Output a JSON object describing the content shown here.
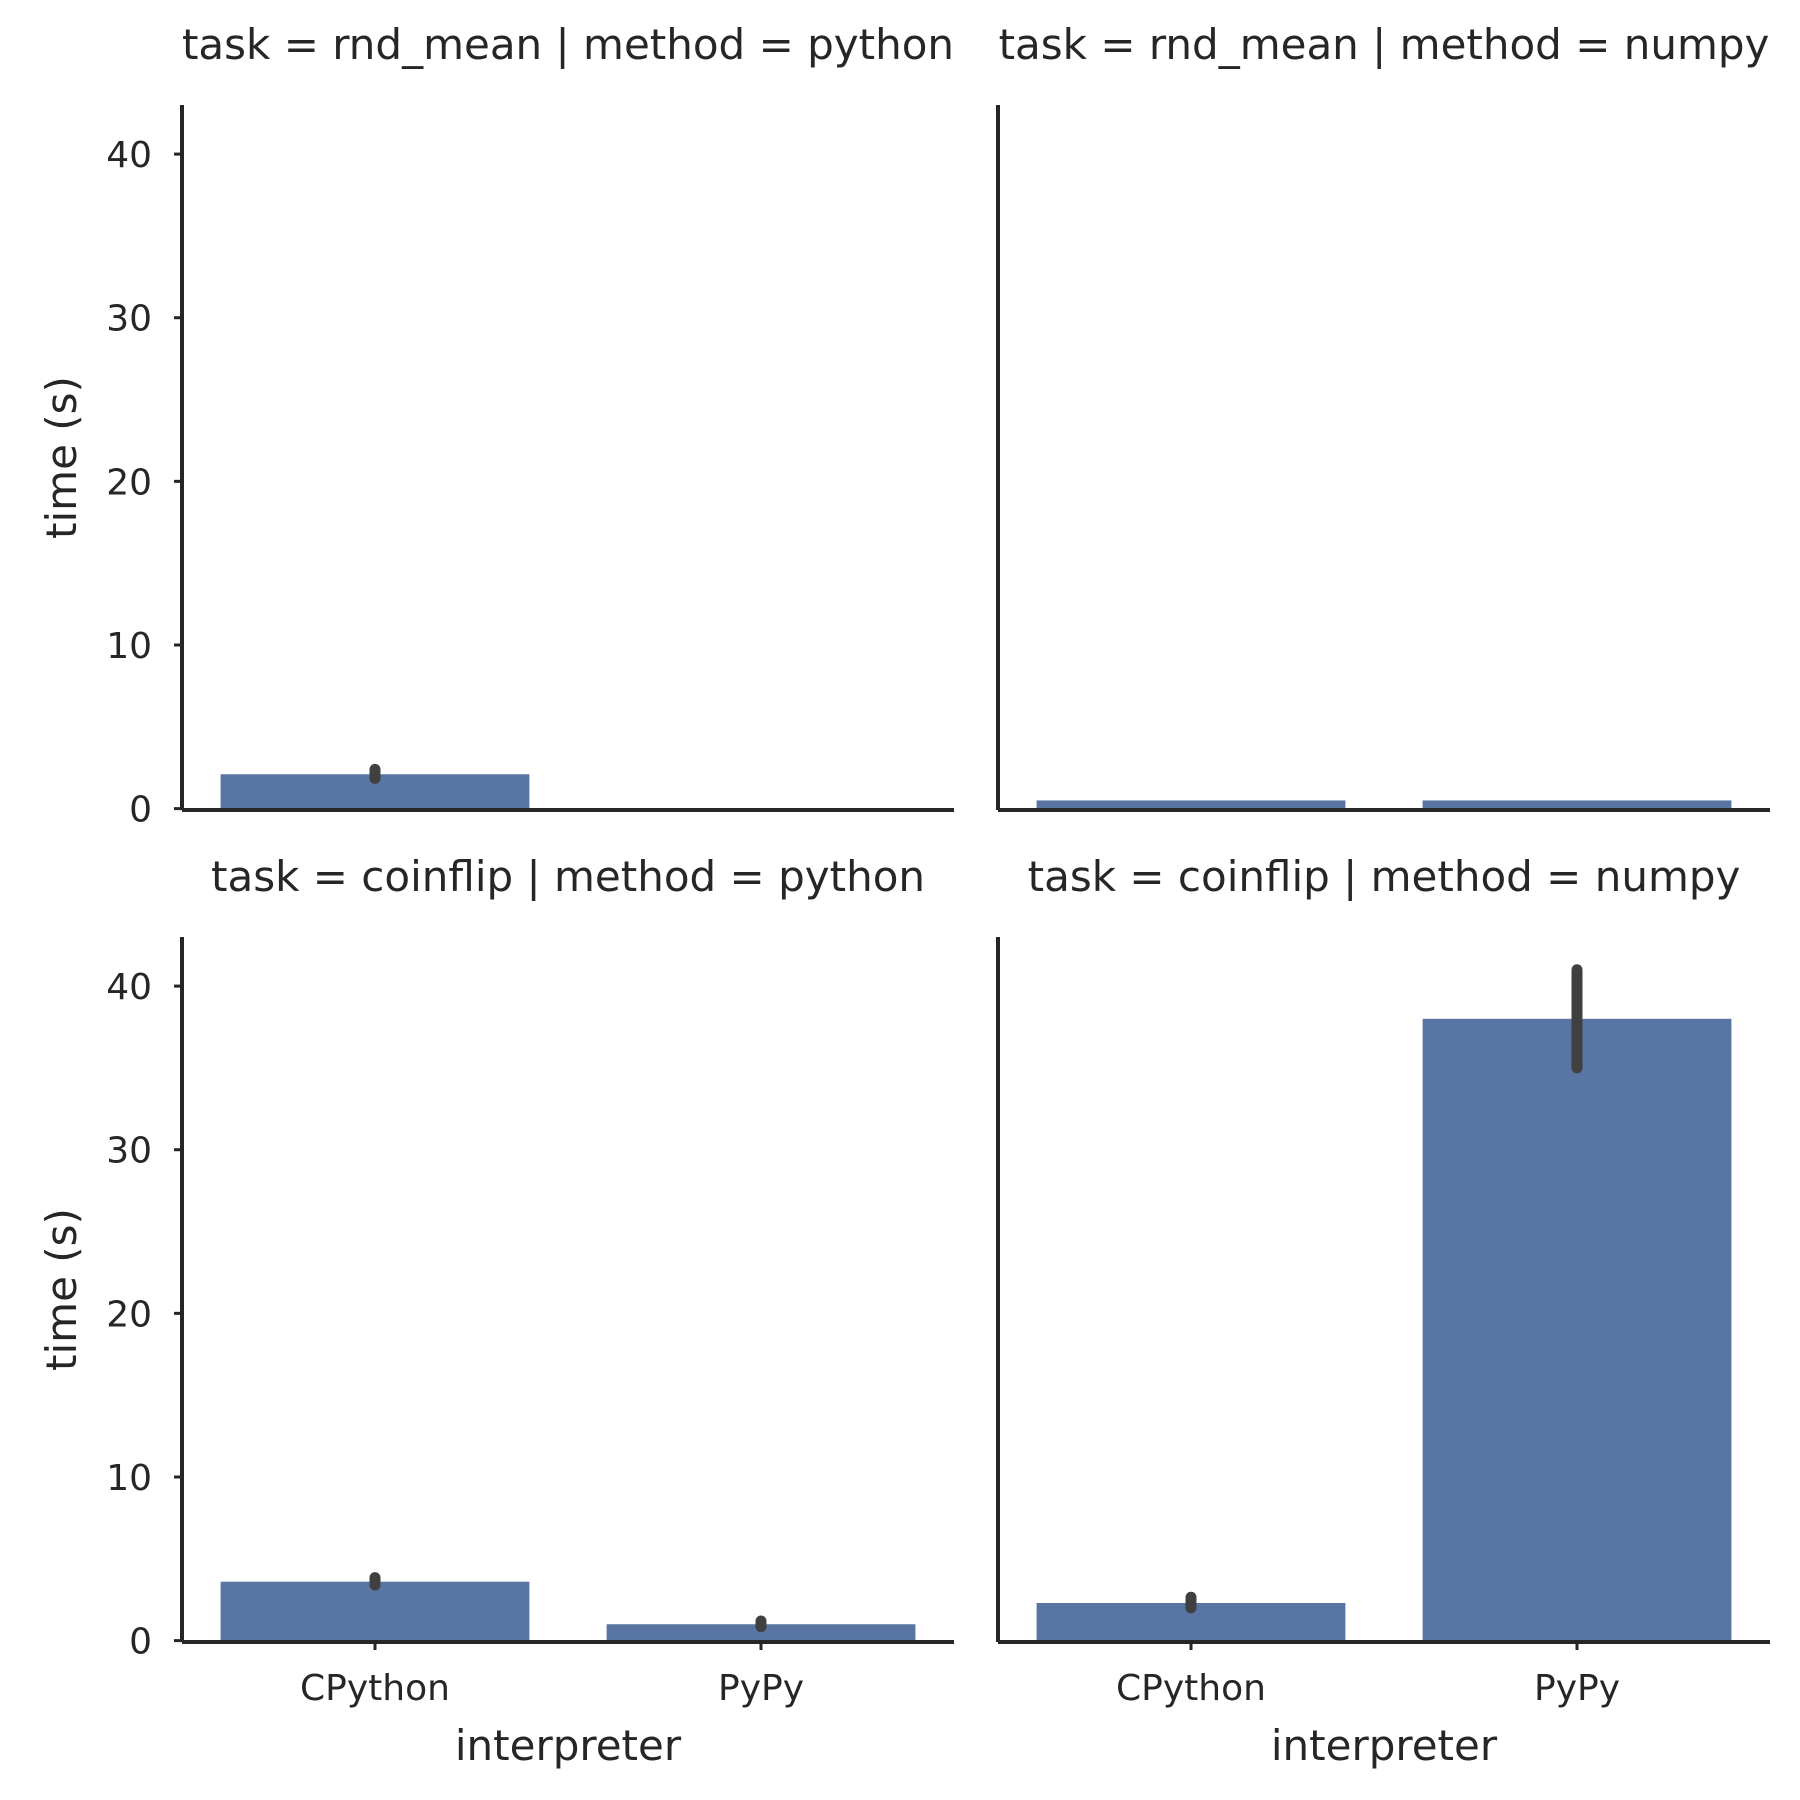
{
  "figure": {
    "bar_color": "#5875a4",
    "errorbar_color": "#404040",
    "axis_color": "#262626"
  },
  "chart_data": [
    {
      "type": "bar",
      "title": "task = rnd_mean | method = python",
      "categories": [
        "CPython",
        "PyPy"
      ],
      "values": [
        2.1,
        0.02
      ],
      "error_intervals": [
        [
          1.85,
          2.4
        ],
        null
      ],
      "xlabel": "",
      "ylabel": "time (s)",
      "ylim": [
        0,
        43
      ],
      "yticks": [
        0,
        10,
        20,
        30,
        40
      ],
      "show_x_tick_labels": false,
      "grid": false
    },
    {
      "type": "bar",
      "title": "task = rnd_mean | method = numpy",
      "categories": [
        "CPython",
        "PyPy"
      ],
      "values": [
        0.5,
        0.5
      ],
      "error_intervals": [
        null,
        null
      ],
      "xlabel": "",
      "ylabel": "",
      "ylim": [
        0,
        43
      ],
      "yticks": [],
      "show_x_tick_labels": false,
      "grid": false
    },
    {
      "type": "bar",
      "title": "task = coinflip | method = python",
      "categories": [
        "CPython",
        "PyPy"
      ],
      "values": [
        3.6,
        1.0
      ],
      "error_intervals": [
        [
          3.4,
          3.85
        ],
        [
          0.85,
          1.2
        ]
      ],
      "xlabel": "interpreter",
      "ylabel": "time (s)",
      "ylim": [
        0,
        43
      ],
      "yticks": [
        0,
        10,
        20,
        30,
        40
      ],
      "show_x_tick_labels": true,
      "grid": false
    },
    {
      "type": "bar",
      "title": "task = coinflip | method = numpy",
      "categories": [
        "CPython",
        "PyPy"
      ],
      "values": [
        2.3,
        38.0
      ],
      "error_intervals": [
        [
          2.0,
          2.65
        ],
        [
          35.0,
          41.0
        ]
      ],
      "xlabel": "interpreter",
      "ylabel": "",
      "ylim": [
        0,
        43
      ],
      "yticks": [],
      "show_x_tick_labels": true,
      "grid": false
    }
  ]
}
